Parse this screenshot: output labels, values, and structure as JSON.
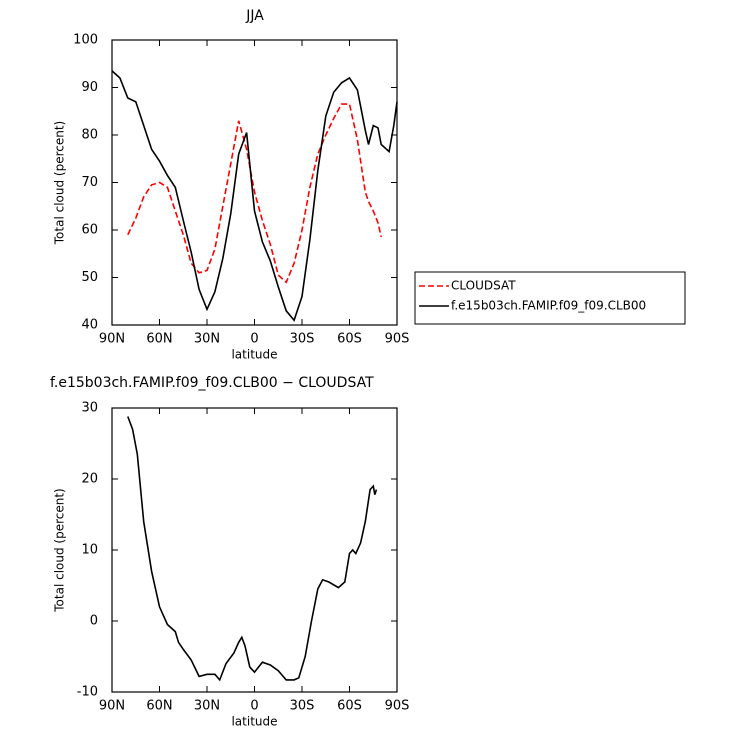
{
  "chart_data": [
    {
      "type": "line",
      "title": "JJA",
      "x_label": "latitude",
      "y_label": "Total cloud (percent)",
      "x": [
        90,
        85,
        80,
        75,
        70,
        65,
        60,
        55,
        50,
        45,
        40,
        35,
        30,
        25,
        20,
        15,
        10,
        5,
        0,
        -5,
        -10,
        -15,
        -20,
        -25,
        -30,
        -35,
        -40,
        -45,
        -50,
        -55,
        -60,
        -65,
        -70,
        -72,
        -75,
        -78,
        -80,
        -85,
        -88,
        -90
      ],
      "series": [
        {
          "name": "CLOUDSAT",
          "color": "#ff0000",
          "dashed": true,
          "values": [
            null,
            null,
            59,
            62.5,
            67,
            69.5,
            70,
            69,
            64,
            59,
            53,
            51,
            51.5,
            56,
            65,
            74,
            83,
            77,
            68,
            62,
            57,
            50.5,
            49,
            53,
            60,
            69,
            76,
            80,
            83.5,
            86.5,
            86.5,
            79,
            68,
            66,
            64,
            61.5,
            58.5,
            null,
            null,
            null
          ]
        },
        {
          "name": "f.e15b03ch.FAMIP.f09_f09.CLB00",
          "color": "#000000",
          "dashed": false,
          "values": [
            93.5,
            92,
            87.8,
            87,
            82,
            77,
            74.5,
            71.5,
            69,
            62,
            55.3,
            47.5,
            43.3,
            47,
            54,
            63.5,
            76,
            80.5,
            64,
            57.5,
            53.5,
            48,
            43,
            41,
            46,
            58,
            72.5,
            84,
            89,
            91,
            92,
            89.5,
            81,
            78,
            82,
            81.5,
            78,
            76.5,
            82,
            87
          ]
        }
      ],
      "xlim": [
        90,
        -90
      ],
      "xticks": [
        {
          "value": 90,
          "label": "90N"
        },
        {
          "value": 60,
          "label": "60N"
        },
        {
          "value": 30,
          "label": "30N"
        },
        0,
        {
          "value": -30,
          "label": "30S"
        },
        {
          "value": -60,
          "label": "60S"
        },
        {
          "value": -90,
          "label": "90S"
        }
      ],
      "ylim": [
        40,
        100
      ],
      "yticks": [
        40,
        50,
        60,
        70,
        80,
        90,
        100
      ],
      "legend": "right"
    },
    {
      "type": "line",
      "title": "f.e15b03ch.FAMIP.f09_f09.CLB00 − CLOUDSAT",
      "x_label": "latitude",
      "y_label": "Total cloud (percent)",
      "x": [
        80,
        77,
        74,
        70,
        65,
        60,
        55,
        50,
        48,
        45,
        40,
        35,
        30,
        25,
        22,
        18,
        13,
        10,
        8,
        6,
        3,
        0,
        -5,
        -10,
        -15,
        -20,
        -25,
        -28,
        -32,
        -36,
        -40,
        -43,
        -47,
        -53,
        -57,
        -60,
        -62,
        -64,
        -67,
        -70,
        -73,
        -75,
        -76,
        -77
      ],
      "values": [
        28.8,
        27,
        23.5,
        14,
        7,
        2,
        -0.5,
        -1.5,
        -3,
        -4,
        -5.5,
        -7.8,
        -7.5,
        -7.5,
        -8.3,
        -6,
        -4.5,
        -3,
        -2.3,
        -3.5,
        -6.5,
        -7.2,
        -5.8,
        -6.2,
        -7,
        -8.3,
        -8.3,
        -8,
        -5,
        0,
        4.5,
        5.8,
        5.5,
        4.7,
        5.5,
        9.5,
        10,
        9.5,
        11,
        14,
        18.5,
        19,
        17.8,
        18.5
      ],
      "color": "#000000",
      "xlim": [
        90,
        -90
      ],
      "xticks": [
        {
          "value": 90,
          "label": "90N"
        },
        {
          "value": 60,
          "label": "60N"
        },
        {
          "value": 30,
          "label": "30N"
        },
        0,
        {
          "value": -30,
          "label": "30S"
        },
        {
          "value": -60,
          "label": "60S"
        },
        {
          "value": -90,
          "label": "90S"
        }
      ],
      "ylim": [
        -10,
        30
      ],
      "yticks": [
        -10,
        0,
        10,
        20,
        30
      ]
    }
  ]
}
